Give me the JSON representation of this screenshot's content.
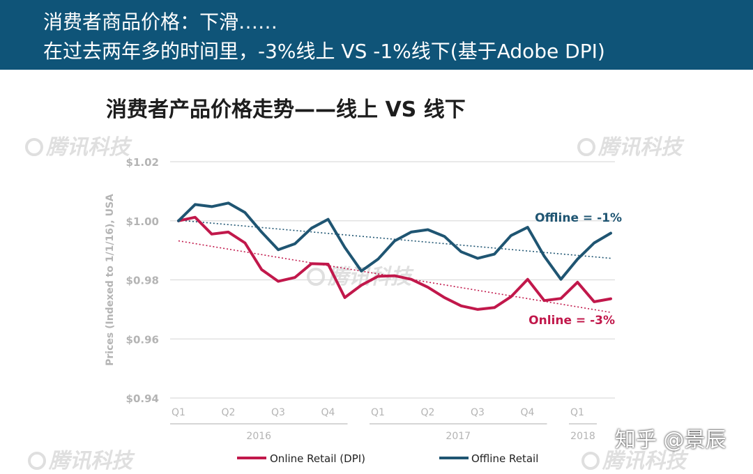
{
  "header": {
    "line1": "消费者商品价格：下滑……",
    "line2": "在过去两年多的时间里，-3%线上  VS   -1%线下(基于Adobe DPI)"
  },
  "watermarks": {
    "brand": "腾讯科技",
    "zhihu": "知乎 @景辰"
  },
  "colors": {
    "banner": "#0f5478",
    "online": "#c1184b",
    "offline": "#1f5572",
    "grid": "#dcdcdc",
    "axis_text": "#b4b4b4"
  },
  "chart_data": {
    "type": "line",
    "title": "消费者产品价格走势——线上 VS 线下",
    "ylabel": "Prices (Indexed to 1/1/16), USA",
    "xlabel": "",
    "ylim": [
      0.94,
      1.02
    ],
    "yticks": [
      1.02,
      1.0,
      0.98,
      0.96,
      0.94
    ],
    "ytick_labels": [
      "$1.02",
      "$1.00",
      "$0.98",
      "$0.96",
      "$0.94"
    ],
    "quarters": [
      "Q1",
      "Q2",
      "Q3",
      "Q4",
      "Q1",
      "Q2",
      "Q3",
      "Q4",
      "Q1"
    ],
    "years": [
      {
        "label": "2016",
        "q_from": 0,
        "q_to": 3
      },
      {
        "label": "2017",
        "q_from": 4,
        "q_to": 7
      },
      {
        "label": "2018",
        "q_from": 8,
        "q_to": 8
      }
    ],
    "x_range": [
      0,
      26
    ],
    "series": [
      {
        "name": "Online Retail (DPI)",
        "color": "#c1184b",
        "x": [
          0,
          1,
          2,
          3,
          4,
          5,
          6,
          7,
          8,
          9,
          10,
          11,
          12,
          13,
          14,
          15,
          16,
          17,
          18,
          19,
          20,
          21,
          22,
          23,
          24,
          25,
          26
        ],
        "values": [
          1.0,
          1.0012,
          0.9955,
          0.9962,
          0.9925,
          0.9835,
          0.9795,
          0.9808,
          0.9855,
          0.9853,
          0.974,
          0.9782,
          0.9812,
          0.9814,
          0.9802,
          0.9775,
          0.974,
          0.9712,
          0.97,
          0.9706,
          0.9743,
          0.9802,
          0.973,
          0.9737,
          0.9792,
          0.9726,
          0.9736
        ],
        "trend": {
          "x0": 0,
          "y0": 0.9932,
          "x1": 26,
          "y1": 0.969
        },
        "label": "Online = -3%"
      },
      {
        "name": "Offline Retail",
        "color": "#1f5572",
        "x": [
          0,
          1,
          2,
          3,
          4,
          5,
          6,
          7,
          8,
          9,
          10,
          11,
          12,
          13,
          14,
          15,
          16,
          17,
          18,
          19,
          20,
          21,
          22,
          23,
          24,
          25,
          26
        ],
        "values": [
          1.0,
          1.0055,
          1.0048,
          1.006,
          1.0028,
          0.9962,
          0.9902,
          0.9922,
          0.9975,
          1.0005,
          0.991,
          0.983,
          0.987,
          0.9932,
          0.9962,
          0.997,
          0.9947,
          0.9895,
          0.9873,
          0.9887,
          0.995,
          0.9978,
          0.988,
          0.9802,
          0.987,
          0.9925,
          0.9958
        ],
        "trend": {
          "x0": 0,
          "y0": 1.0002,
          "x1": 26,
          "y1": 0.9873
        },
        "label": "Offline = -1%"
      }
    ]
  }
}
